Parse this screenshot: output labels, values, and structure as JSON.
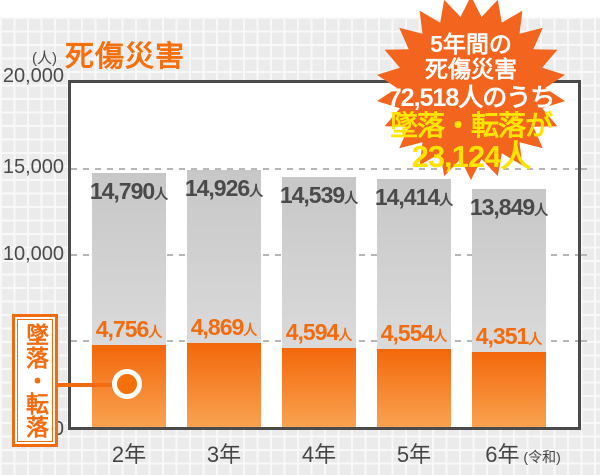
{
  "title": "死傷災害",
  "unit_label": "(人)",
  "axis": {
    "y_ticks": {
      "t20000": "20,000",
      "t15000": "15,000",
      "t10000": "10,000",
      "t0": "0"
    },
    "era_suffix": "(令和)"
  },
  "callout": {
    "label": "墜落・転落"
  },
  "badge": {
    "line1": "5年間の",
    "line2": "死傷災害",
    "line3": "72,518人のうち",
    "line4": "墜落・転落が",
    "line5": "23,124人",
    "bg_color": "#f3641e",
    "text_color": "#ffffff",
    "highlight_color": "#ffe400"
  },
  "chart_data": {
    "type": "bar",
    "categories": [
      "2年",
      "3年",
      "4年",
      "5年",
      "6年"
    ],
    "series": [
      {
        "name": "死傷災害",
        "values": [
          14790,
          14926,
          14539,
          14414,
          13849
        ],
        "bar_color": "#c7c7c7",
        "label_color": "#4a4a4a"
      },
      {
        "name": "墜落・転落",
        "values": [
          4756,
          4869,
          4594,
          4554,
          4351
        ],
        "bar_color": "#f3670a",
        "label_color": "#f26c0f"
      }
    ],
    "unit_suffix": "人",
    "ylabel": "(人)",
    "ylim": [
      0,
      20000
    ],
    "gridlines": [
      5000,
      10000,
      15000
    ],
    "grid_style": "dashed"
  }
}
